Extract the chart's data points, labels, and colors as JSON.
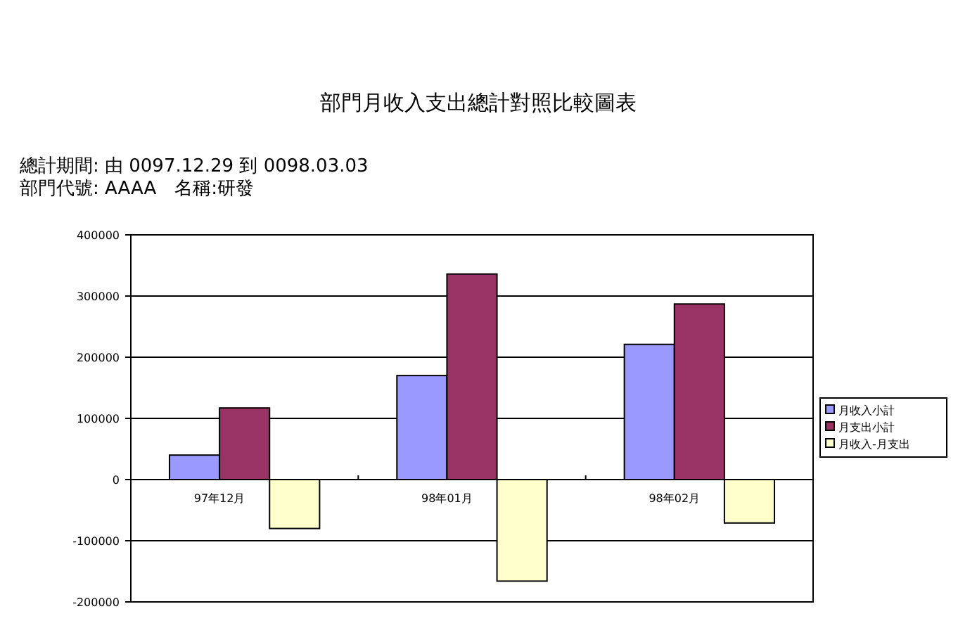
{
  "chart_data": {
    "type": "bar",
    "title": "部門月收入支出總計對照比較圖表",
    "annotations": [
      "總計期間: 由 0097.12.29 到 0098.03.03",
      "部門代號: AAAA　名稱:研發"
    ],
    "categories": [
      "97年12月",
      "98年01月",
      "98年02月"
    ],
    "series": [
      {
        "name": "月收入小計",
        "color": "#9999ff",
        "values": [
          40000,
          170000,
          221000
        ]
      },
      {
        "name": "月支出小計",
        "color": "#993366",
        "values": [
          117000,
          336000,
          287000
        ]
      },
      {
        "name": "月收入-月支出",
        "color": "#ffffcc",
        "values": [
          -80000,
          -166000,
          -71000
        ]
      }
    ],
    "ylim": [
      -200000,
      400000
    ],
    "yticks": [
      -200000,
      -100000,
      0,
      100000,
      200000,
      300000,
      400000
    ],
    "grid": "y",
    "legend": "right"
  }
}
